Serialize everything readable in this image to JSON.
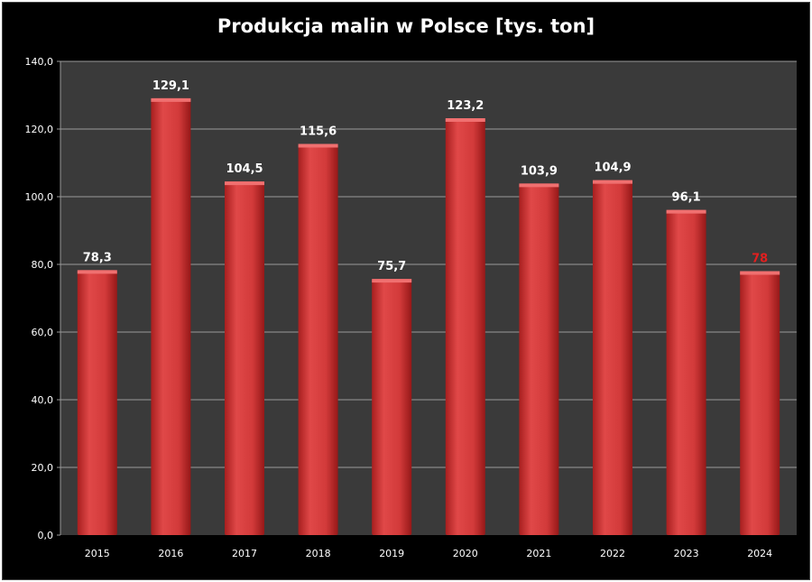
{
  "chart_data": {
    "type": "bar",
    "title": "Produkcja malin w Polsce [tys. ton]",
    "categories": [
      "2015",
      "2016",
      "2017",
      "2018",
      "2019",
      "2020",
      "2021",
      "2022",
      "2023",
      "2024"
    ],
    "values": [
      78.3,
      129.1,
      104.5,
      115.6,
      75.7,
      123.2,
      103.9,
      104.9,
      96.1,
      78
    ],
    "data_labels": [
      "78,3",
      "129,1",
      "104,5",
      "115,6",
      "75,7",
      "123,2",
      "103,9",
      "104,9",
      "96,1",
      "78"
    ],
    "ylim": [
      0,
      140
    ],
    "yticks": [
      "0,0",
      "20,0",
      "40,0",
      "60,0",
      "80,0",
      "100,0",
      "120,0",
      "140,0"
    ],
    "grid": true,
    "colors": {
      "background": "#000000",
      "plot_background": "#3a3a3a",
      "bar": "#d23a3a",
      "gridline": "#9a9a9a",
      "label": "#ffffff",
      "highlight_label": "#e21f1f"
    },
    "highlight_index": 9
  }
}
